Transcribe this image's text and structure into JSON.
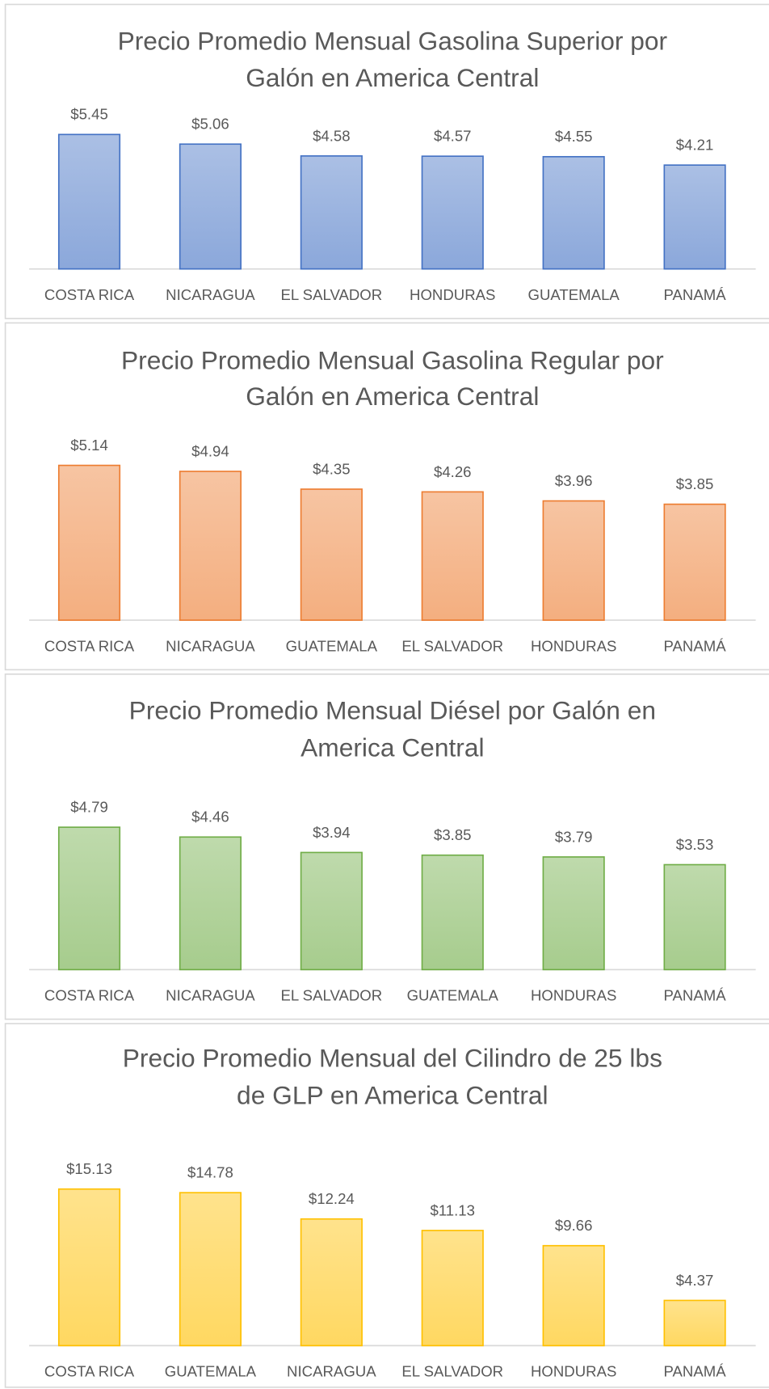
{
  "chart_data": [
    {
      "type": "bar",
      "title": [
        "Precio Promedio Mensual Gasolina Superior por",
        "Galón en America Central"
      ],
      "categories": [
        "COSTA RICA",
        "NICARAGUA",
        "EL SALVADOR",
        "HONDURAS",
        "GUATEMALA",
        "PANAMÁ"
      ],
      "values": [
        5.45,
        5.06,
        4.58,
        4.57,
        4.55,
        4.21
      ],
      "value_labels": [
        "$5.45",
        "$5.06",
        "$4.58",
        "$4.57",
        "$4.55",
        "$4.21"
      ],
      "color": "#4472c4"
    },
    {
      "type": "bar",
      "title": [
        "Precio Promedio Mensual Gasolina Regular por",
        "Galón en America Central"
      ],
      "categories": [
        "COSTA RICA",
        "NICARAGUA",
        "GUATEMALA",
        "EL SALVADOR",
        "HONDURAS",
        "PANAMÁ"
      ],
      "values": [
        5.14,
        4.94,
        4.35,
        4.26,
        3.96,
        3.85
      ],
      "value_labels": [
        "$5.14",
        "$4.94",
        "$4.35",
        "$4.26",
        "$3.96",
        "$3.85"
      ],
      "color": "#ed7d31"
    },
    {
      "type": "bar",
      "title": [
        "Precio Promedio Mensual Diésel por Galón en",
        "America Central"
      ],
      "categories": [
        "COSTA RICA",
        "NICARAGUA",
        "EL SALVADOR",
        "GUATEMALA",
        "HONDURAS",
        "PANAMÁ"
      ],
      "values": [
        4.79,
        4.46,
        3.94,
        3.85,
        3.79,
        3.53
      ],
      "value_labels": [
        "$4.79",
        "$4.46",
        "$3.94",
        "$3.85",
        "$3.79",
        "$3.53"
      ],
      "color": "#70ad47"
    },
    {
      "type": "bar",
      "title": [
        "Precio Promedio Mensual del Cilindro de 25 lbs",
        "de GLP en America Central"
      ],
      "categories": [
        "COSTA RICA",
        "GUATEMALA",
        "NICARAGUA",
        "EL SALVADOR",
        "HONDURAS",
        "PANAMÁ"
      ],
      "values": [
        15.13,
        14.78,
        12.24,
        11.13,
        9.66,
        4.37
      ],
      "value_labels": [
        "$15.13",
        "$14.78",
        "$12.24",
        "$11.13",
        "$9.66",
        "$4.37"
      ],
      "color": "#ffc000"
    }
  ]
}
